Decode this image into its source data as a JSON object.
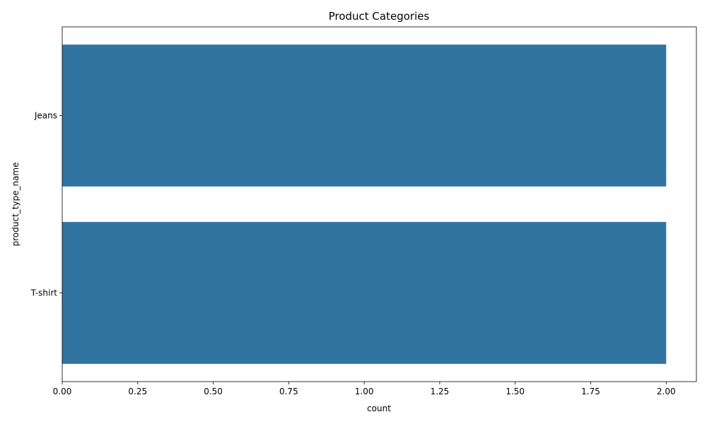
{
  "chart_data": {
    "type": "bar",
    "orientation": "horizontal",
    "title": "Product Categories",
    "xlabel": "count",
    "ylabel": "product_type_name",
    "categories": [
      "Jeans",
      "T-shirt"
    ],
    "values": [
      2,
      2
    ],
    "xlim": [
      0,
      2.1
    ],
    "xticks": [
      "0.00",
      "0.25",
      "0.50",
      "0.75",
      "1.00",
      "1.25",
      "1.50",
      "1.75",
      "2.00"
    ],
    "grid": false,
    "legend": "none",
    "bar_color": "#3274a1"
  }
}
